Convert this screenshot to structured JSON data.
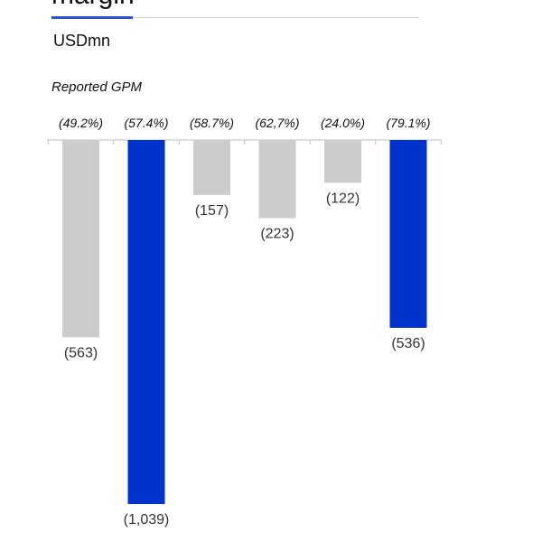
{
  "header": {
    "title": "margin",
    "unit": "USDmn"
  },
  "chart_data": {
    "type": "bar",
    "subtitle": "Reported GPM",
    "categories": [
      "",
      "",
      "",
      "",
      "",
      ""
    ],
    "values": [
      -563,
      -1039,
      -157,
      -223,
      -122,
      -536
    ],
    "value_labels": [
      "(563)",
      "(1,039)",
      "(157)",
      "(223)",
      "(122)",
      "(536)"
    ],
    "gpm_labels": [
      "(49.2%)",
      "(57.4%)",
      "(58.7%)",
      "(62,7%)",
      "(24.0%)",
      "(79.1%)"
    ],
    "highlighted": [
      false,
      true,
      false,
      false,
      false,
      true
    ],
    "ylim": [
      -1039,
      0
    ],
    "grid": false,
    "colors": {
      "default": "#cccccc",
      "highlight": "#0033cc",
      "axis": "#bfbfbf"
    }
  }
}
